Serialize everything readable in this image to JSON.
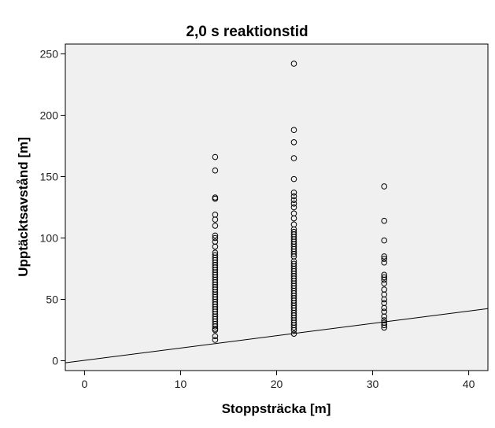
{
  "chart_data": {
    "type": "scatter",
    "title": "2,0 s reaktionstid",
    "xlabel": "Stoppsträcka [m]",
    "ylabel": "Upptäcktsavstånd [m]",
    "xlim": [
      -2,
      42
    ],
    "ylim": [
      -8,
      258
    ],
    "xticks": [
      "0",
      "10",
      "20",
      "30",
      "40"
    ],
    "yticks": [
      "0",
      "50",
      "100",
      "150",
      "200",
      "250"
    ],
    "grid": false,
    "series": [
      {
        "x": 13.6,
        "y": [
          17,
          20,
          25,
          26,
          28,
          30,
          32,
          34,
          36,
          38,
          40,
          42,
          44,
          46,
          48,
          50,
          52,
          54,
          56,
          58,
          60,
          62,
          64,
          66,
          68,
          70,
          72,
          74,
          76,
          78,
          80,
          82,
          84,
          86,
          88,
          93,
          97,
          100,
          102,
          110,
          115,
          119,
          132,
          133,
          155,
          166
        ]
      },
      {
        "x": 21.8,
        "y": [
          22,
          25,
          27,
          29,
          31,
          33,
          35,
          37,
          39,
          41,
          43,
          45,
          47,
          49,
          51,
          53,
          55,
          57,
          59,
          61,
          63,
          65,
          67,
          69,
          71,
          73,
          75,
          77,
          79,
          81,
          85,
          87,
          89,
          91,
          93,
          95,
          97,
          99,
          101,
          103,
          105,
          107,
          111,
          116,
          120,
          125,
          128,
          131,
          134,
          137,
          148,
          165,
          178,
          188,
          242
        ]
      },
      {
        "x": 31.2,
        "y": [
          27,
          29,
          31,
          33,
          36,
          40,
          43,
          47,
          50,
          54,
          58,
          63,
          66,
          68,
          70,
          80,
          83,
          85,
          98,
          114,
          142
        ]
      }
    ],
    "line": {
      "x": [
        -2,
        42
      ],
      "y": [
        -1.7,
        42.5
      ]
    }
  }
}
